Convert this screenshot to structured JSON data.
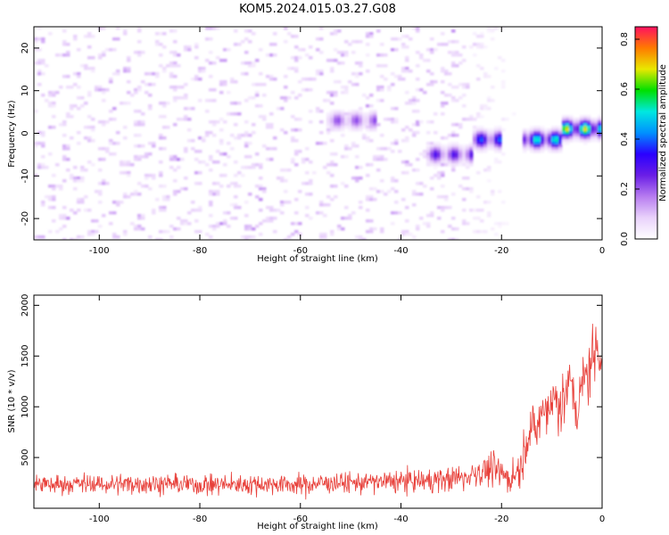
{
  "figure_title": "KOM5.2024.015.03.27.G08",
  "colors": {
    "snr_line": "#e8413b",
    "colormap": [
      "#ffffff",
      "#e9d2fb",
      "#b77cf0",
      "#6a1ee6",
      "#2a00ff",
      "#0090ff",
      "#00e8e0",
      "#00e000",
      "#e8e800",
      "#ff7a00",
      "#ff1060"
    ]
  },
  "chart_data": [
    {
      "type": "heatmap",
      "title": "",
      "xlabel": "Height of straight line (km)",
      "ylabel": "Frequency (Hz)",
      "xlim": [
        -113,
        0
      ],
      "ylim": [
        -25,
        25
      ],
      "x_ticks": [
        -100,
        -80,
        -60,
        -40,
        -20,
        0
      ],
      "y_ticks": [
        -20,
        -10,
        0,
        10,
        20
      ],
      "colorbar": {
        "label": "Normalized spectral amplitude",
        "range": [
          0,
          0.85
        ],
        "ticks": [
          "0.0",
          "0.2",
          "0.4",
          "0.6",
          "0.8"
        ]
      },
      "features": [
        {
          "x_range": [
            -113,
            -30
          ],
          "freq_range": [
            -25,
            25
          ],
          "amplitude": [
            0.02,
            0.15
          ]
        },
        {
          "x_range": [
            -55,
            -45
          ],
          "freq": 3,
          "amplitude": 0.22
        },
        {
          "x_range": [
            -35,
            -26
          ],
          "freq": -5,
          "amplitude": 0.3
        },
        {
          "x_range": [
            -26,
            -20
          ],
          "freq": -1.5,
          "amplitude": 0.4
        },
        {
          "x_range": [
            -16,
            -8
          ],
          "freq": -1.5,
          "amplitude": 0.55
        },
        {
          "x_range": [
            -8,
            0
          ],
          "freq": 1,
          "amplitude": 0.7
        }
      ]
    },
    {
      "type": "line",
      "title": "",
      "xlabel": "Height of straight line (km)",
      "ylabel": "SNR (10 * v/v)",
      "xlim": [
        -113,
        0
      ],
      "ylim": [
        0,
        2100
      ],
      "x_ticks": [
        -100,
        -80,
        -60,
        -40,
        -20,
        0
      ],
      "y_ticks": [
        500,
        1000,
        1500,
        2000
      ],
      "series": [
        {
          "x": [
            -113,
            -110,
            -105,
            -100,
            -95,
            -90,
            -85,
            -80,
            -75,
            -70,
            -65,
            -60,
            -55,
            -50,
            -45,
            -40,
            -35,
            -30,
            -27,
            -25,
            -22,
            -20,
            -18,
            -16,
            -15,
            -14,
            -13,
            -12,
            -11,
            -10,
            -9,
            -8,
            -7,
            -6,
            -5,
            -4,
            -3,
            -2,
            -1,
            0
          ],
          "y": [
            250,
            230,
            240,
            235,
            240,
            245,
            240,
            230,
            235,
            235,
            240,
            230,
            250,
            250,
            260,
            265,
            270,
            290,
            310,
            360,
            380,
            330,
            300,
            430,
            700,
            800,
            750,
            950,
            1000,
            1050,
            1100,
            1000,
            1150,
            1250,
            900,
            1200,
            1350,
            1450,
            1600,
            1550
          ],
          "band": [
            140,
            140,
            140,
            140,
            140,
            140,
            140,
            140,
            140,
            140,
            140,
            140,
            140,
            150,
            150,
            160,
            160,
            170,
            200,
            210,
            230,
            240,
            240,
            260,
            300,
            320,
            320,
            360,
            380,
            400,
            400,
            420,
            420,
            430,
            380,
            430,
            460,
            480,
            500,
            480
          ]
        }
      ]
    }
  ]
}
